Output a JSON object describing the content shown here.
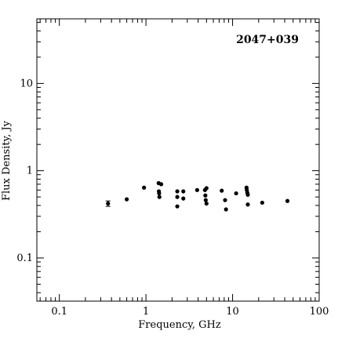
{
  "chart_data": {
    "type": "scatter",
    "title": "2047+039",
    "xlabel": "Frequency, GHz",
    "ylabel": "Flux Density, Jy",
    "x_scale": "log",
    "y_scale": "log",
    "xlim": [
      0.055,
      100
    ],
    "ylim": [
      0.032,
      55
    ],
    "grid": false,
    "x_ticks": [
      {
        "value": 0.1,
        "label": "0.1"
      },
      {
        "value": 1,
        "label": "1"
      },
      {
        "value": 10,
        "label": "10"
      },
      {
        "value": 100,
        "label": "100"
      }
    ],
    "y_ticks": [
      {
        "value": 0.1,
        "label": "0.1"
      },
      {
        "value": 1,
        "label": "1"
      },
      {
        "value": 10,
        "label": "10"
      }
    ],
    "points": [
      {
        "x": 0.365,
        "y": 0.42,
        "err": 0.03
      },
      {
        "x": 0.6,
        "y": 0.47
      },
      {
        "x": 0.95,
        "y": 0.64
      },
      {
        "x": 1.4,
        "y": 0.72
      },
      {
        "x": 1.41,
        "y": 0.58
      },
      {
        "x": 1.42,
        "y": 0.55
      },
      {
        "x": 1.43,
        "y": 0.5
      },
      {
        "x": 1.5,
        "y": 0.7
      },
      {
        "x": 2.3,
        "y": 0.58
      },
      {
        "x": 2.3,
        "y": 0.5
      },
      {
        "x": 2.3,
        "y": 0.39
      },
      {
        "x": 2.7,
        "y": 0.58
      },
      {
        "x": 2.7,
        "y": 0.48
      },
      {
        "x": 3.9,
        "y": 0.6
      },
      {
        "x": 4.8,
        "y": 0.6
      },
      {
        "x": 4.85,
        "y": 0.52
      },
      {
        "x": 4.9,
        "y": 0.46
      },
      {
        "x": 5.0,
        "y": 0.63
      },
      {
        "x": 5.0,
        "y": 0.42
      },
      {
        "x": 7.5,
        "y": 0.59
      },
      {
        "x": 8.2,
        "y": 0.46
      },
      {
        "x": 8.4,
        "y": 0.36
      },
      {
        "x": 11.0,
        "y": 0.55
      },
      {
        "x": 14.5,
        "y": 0.64
      },
      {
        "x": 14.6,
        "y": 0.6
      },
      {
        "x": 14.8,
        "y": 0.56
      },
      {
        "x": 15.0,
        "y": 0.53
      },
      {
        "x": 15.0,
        "y": 0.41
      },
      {
        "x": 22.0,
        "y": 0.43
      },
      {
        "x": 43.0,
        "y": 0.45
      }
    ]
  }
}
